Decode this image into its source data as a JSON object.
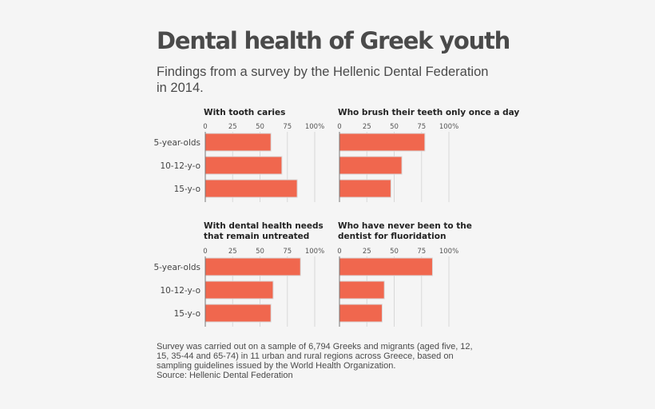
{
  "title": "Dental health of Greek youth",
  "subtitle": "Findings from a survey by the Hellenic Dental Federation in 2014.",
  "colors": {
    "bar": "#f0674e",
    "bar_border": "#d9d9d9",
    "text": "#4a4a4a",
    "grid": "#d8d8d8",
    "background": "#f5f5f5"
  },
  "chart_data": [
    {
      "type": "bar",
      "orientation": "horizontal",
      "title": "With tooth caries",
      "categories": [
        "5-year-olds",
        "10-12-y-o",
        "15-y-o"
      ],
      "values": [
        60,
        70,
        84
      ],
      "xlim": [
        0,
        100
      ],
      "ticks": [
        "0",
        "25",
        "50",
        "75",
        "100%"
      ],
      "grid": true
    },
    {
      "type": "bar",
      "orientation": "horizontal",
      "title": "Who brush their teeth only once a day",
      "categories": [
        "5-year-olds",
        "10-12-y-o",
        "15-y-o"
      ],
      "values": [
        78,
        57,
        47
      ],
      "xlim": [
        0,
        100
      ],
      "ticks": [
        "0",
        "25",
        "50",
        "75",
        "100%"
      ],
      "grid": true
    },
    {
      "type": "bar",
      "orientation": "horizontal",
      "title": "With dental health needs that remain untreated",
      "categories": [
        "5-year-olds",
        "10-12-y-o",
        "15-y-o"
      ],
      "values": [
        87,
        62,
        60
      ],
      "xlim": [
        0,
        100
      ],
      "ticks": [
        "0",
        "25",
        "50",
        "75",
        "100%"
      ],
      "grid": true
    },
    {
      "type": "bar",
      "orientation": "horizontal",
      "title": "Who have never been to the dentist for fluoridation",
      "categories": [
        "5-year-olds",
        "10-12-y-o",
        "15-y-o"
      ],
      "values": [
        85,
        41,
        39
      ],
      "xlim": [
        0,
        100
      ],
      "ticks": [
        "0",
        "25",
        "50",
        "75",
        "100%"
      ],
      "grid": true
    }
  ],
  "footnote": {
    "text": "Survey was carried out on a sample of 6,794 Greeks and migrants (aged five, 12, 15, 35-44 and 65-74) in 11 urban and rural regions across Greece, based on sampling guidelines issued by the World Health Organization.",
    "source": "Source: Hellenic Dental Federation"
  }
}
